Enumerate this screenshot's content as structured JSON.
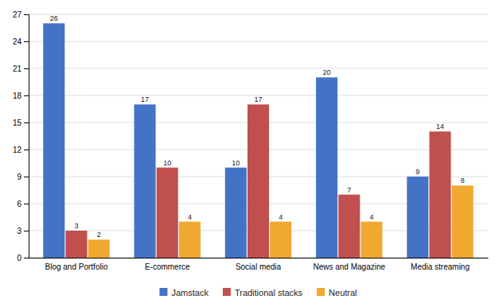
{
  "chart_data": {
    "type": "bar",
    "categories": [
      "Blog and Portfolio",
      "E-commerce",
      "Social media",
      "News and Magazine",
      "Media streaming"
    ],
    "series": [
      {
        "name": "Jamstack",
        "color": "#4472C4",
        "values": [
          26,
          17,
          10,
          20,
          9
        ]
      },
      {
        "name": "Traditional stacks",
        "color": "#C0504D",
        "values": [
          3,
          10,
          17,
          7,
          14
        ]
      },
      {
        "name": "Neutral",
        "color": "#F0A830",
        "values": [
          2,
          4,
          4,
          4,
          8
        ]
      }
    ],
    "ylim": [
      0,
      27
    ],
    "yticks": [
      0,
      3,
      6,
      9,
      12,
      15,
      18,
      21,
      24,
      27
    ],
    "grid": true,
    "legend": "bottom",
    "data_labels": true
  }
}
